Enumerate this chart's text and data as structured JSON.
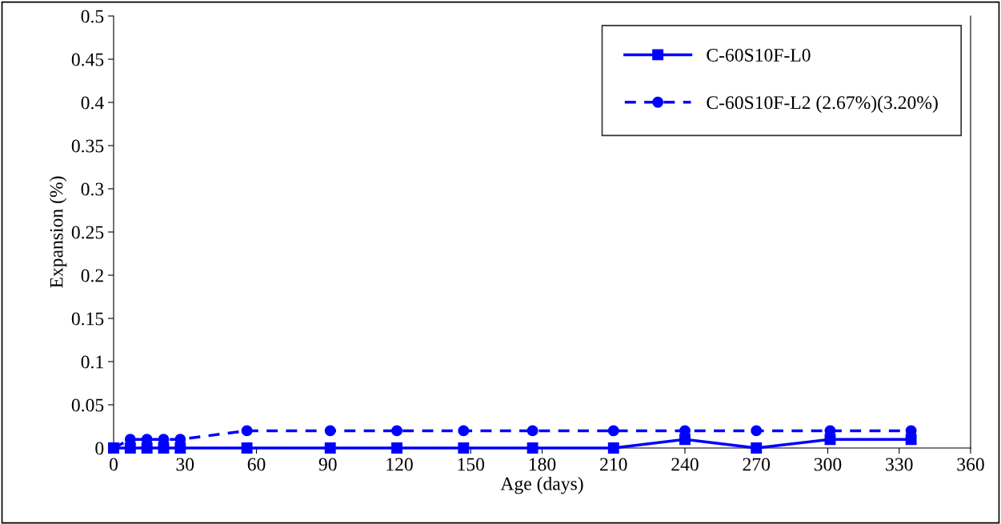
{
  "chart_data": {
    "type": "line",
    "xlabel": "Age (days)",
    "ylabel": "Expansion (%)",
    "xlim": [
      0,
      360
    ],
    "xticks": [
      0,
      30,
      60,
      90,
      120,
      150,
      180,
      210,
      240,
      270,
      300,
      330,
      360
    ],
    "ylim": [
      0,
      0.5
    ],
    "yticks": [
      0,
      0.05,
      0.1,
      0.15,
      0.2,
      0.25,
      0.3,
      0.35,
      0.4,
      0.45,
      0.5
    ],
    "grid": false,
    "legend": "top right",
    "series": [
      {
        "name": "C-60S10F-L0",
        "color": "#0000ff",
        "marker": "square",
        "line_style": "solid",
        "x": [
          0,
          7,
          14,
          21,
          28,
          56,
          91,
          119,
          147,
          176,
          210,
          240,
          270,
          301,
          335
        ],
        "values": [
          0,
          0,
          0,
          0,
          0,
          0,
          0,
          0,
          0,
          0,
          0,
          0.01,
          0,
          0.01,
          0.01
        ]
      },
      {
        "name": "C-60S10F-L2 (2.67%)(3.20%)",
        "color": "#0000ff",
        "marker": "circle",
        "line_style": "dashed",
        "x": [
          0,
          7,
          14,
          21,
          28,
          56,
          91,
          119,
          147,
          176,
          210,
          240,
          270,
          301,
          335
        ],
        "values": [
          0,
          0.01,
          0.01,
          0.01,
          0.01,
          0.02,
          0.02,
          0.02,
          0.02,
          0.02,
          0.02,
          0.02,
          0.02,
          0.02,
          0.02
        ]
      }
    ]
  }
}
